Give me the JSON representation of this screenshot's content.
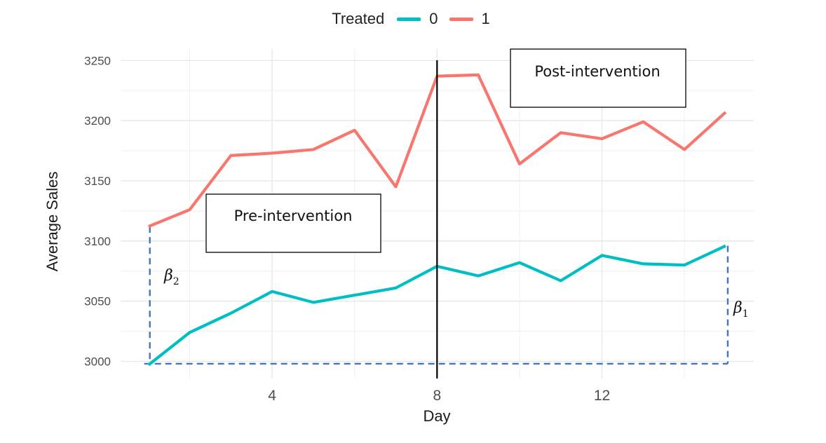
{
  "chart_data": {
    "type": "line",
    "x": [
      1,
      2,
      3,
      4,
      5,
      6,
      7,
      8,
      9,
      10,
      11,
      12,
      13,
      14,
      15
    ],
    "series": [
      {
        "name": "0",
        "color": "#00BFC4",
        "values": [
          2997,
          3024,
          3040,
          3058,
          3049,
          3055,
          3061,
          3079,
          3071,
          3082,
          3067,
          3088,
          3081,
          3080,
          3096
        ]
      },
      {
        "name": "1",
        "color": "#F8766D",
        "values": [
          3112,
          3126,
          3171,
          3173,
          3176,
          3192,
          3145,
          3237,
          3238,
          3164,
          3190,
          3185,
          3199,
          3176,
          3207
        ]
      }
    ],
    "legend_title": "Treated",
    "legend_position": "top",
    "xlabel": "Day",
    "ylabel": "Average Sales",
    "xticks": [
      4,
      8,
      12
    ],
    "yticks": [
      3000,
      3050,
      3100,
      3150,
      3200,
      3250
    ],
    "xlim": [
      0.5,
      15.5
    ],
    "ylim": [
      2990,
      3250
    ],
    "grid": true,
    "annotations": {
      "intervention_day": 8,
      "pre_label": "Pre-intervention",
      "post_label": "Post-intervention",
      "baseline_value": 2998,
      "beta2": {
        "symbol": "β",
        "sub": "2"
      },
      "beta1": {
        "symbol": "β",
        "sub": "1"
      },
      "dashed_color": "#4472C4"
    }
  }
}
